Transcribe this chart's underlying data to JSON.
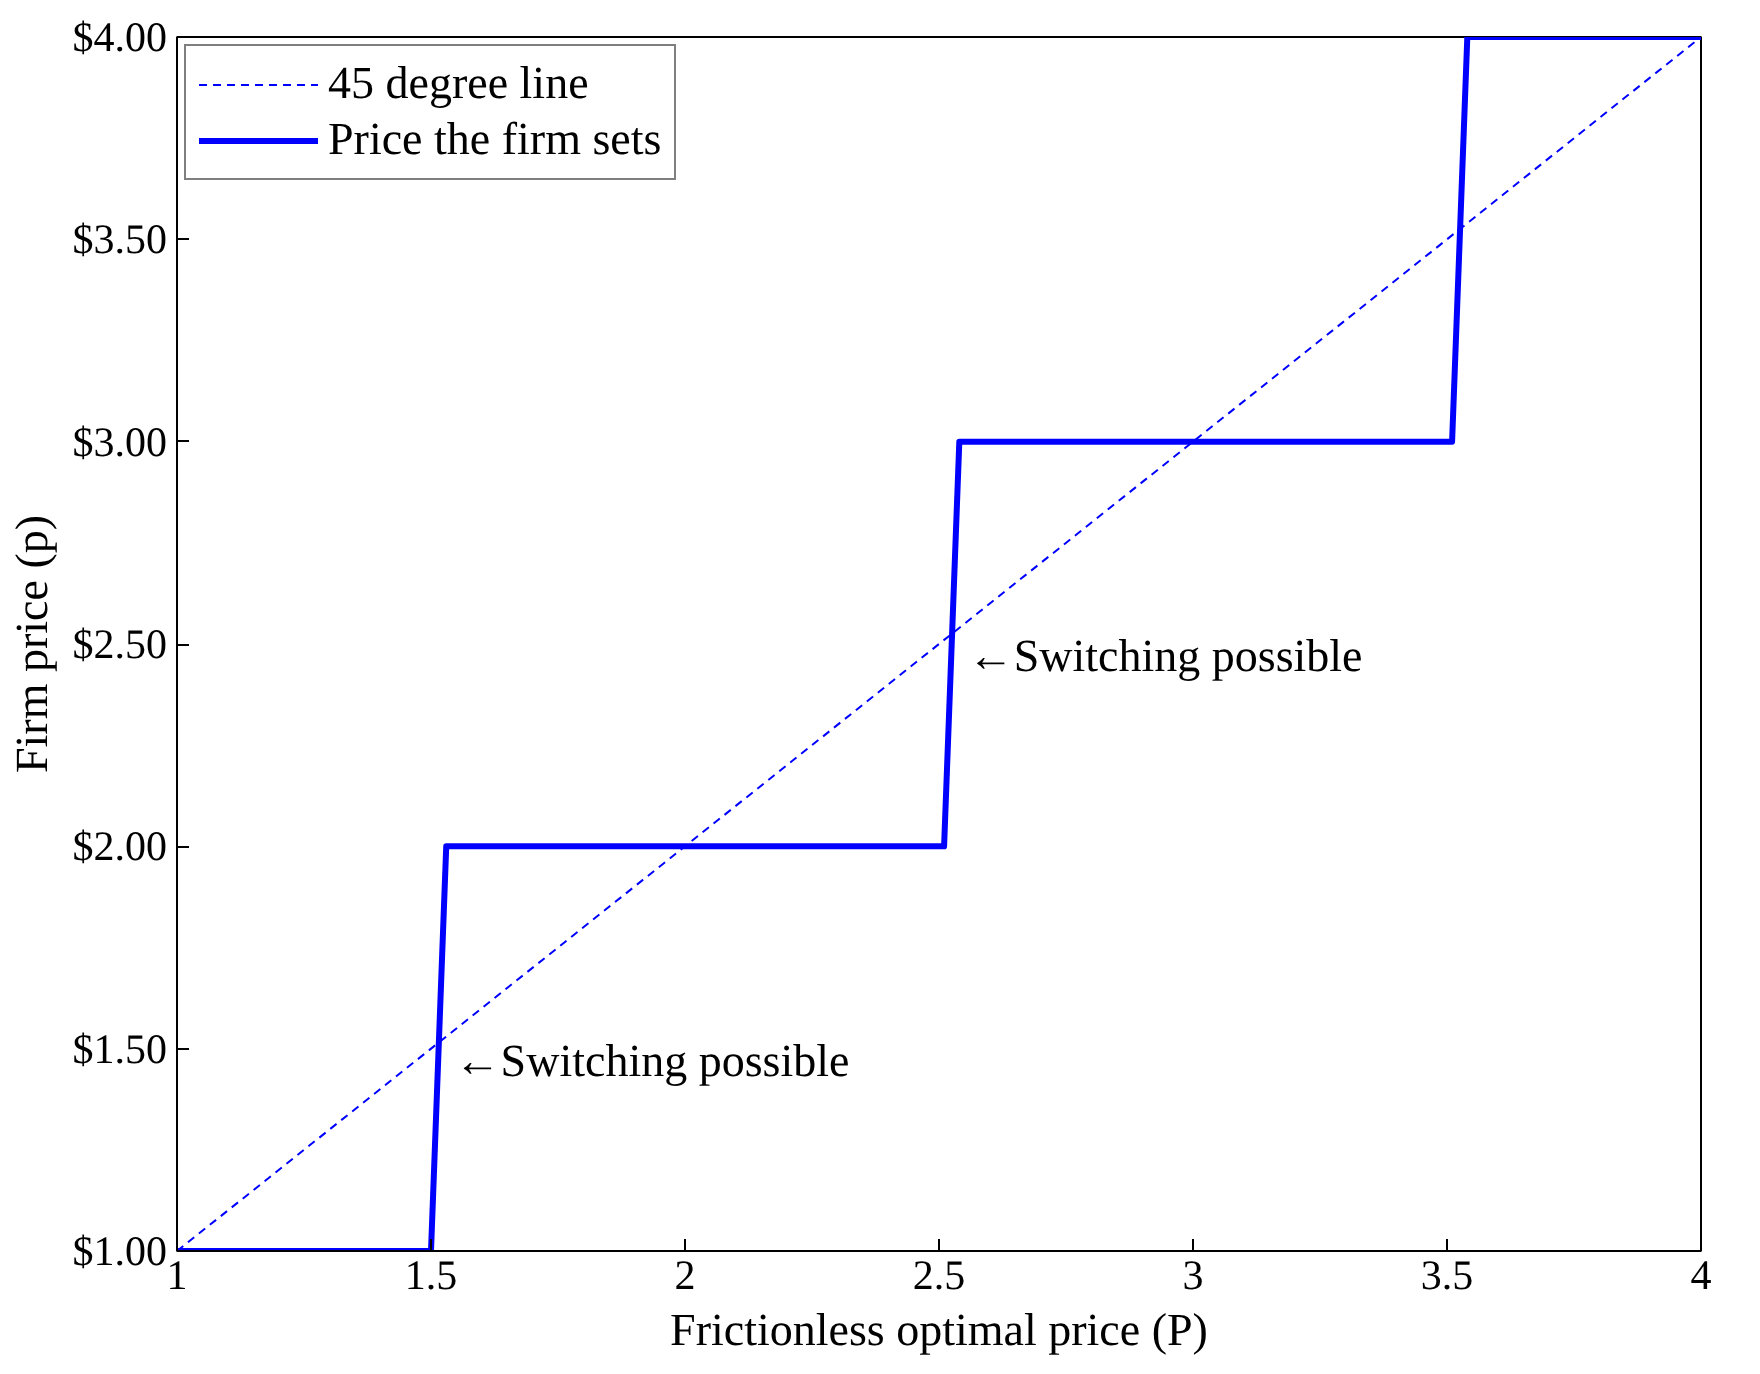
{
  "chart_data": {
    "type": "line",
    "xlabel": "Frictionless optimal price (P)",
    "ylabel": "Firm price (p)",
    "xlim": [
      1,
      4
    ],
    "ylim": [
      1,
      4
    ],
    "xticks": [
      1,
      1.5,
      2,
      2.5,
      3,
      3.5,
      4
    ],
    "yticks": [
      {
        "value": 1,
        "label": "$1.00"
      },
      {
        "value": 1.5,
        "label": "$1.50"
      },
      {
        "value": 2,
        "label": "$2.00"
      },
      {
        "value": 2.5,
        "label": "$2.50"
      },
      {
        "value": 3,
        "label": "$3.00"
      },
      {
        "value": 3.5,
        "label": "$3.50"
      },
      {
        "value": 4,
        "label": "$4.00"
      }
    ],
    "series": [
      {
        "name": "45 degree line",
        "color": "#0000ff",
        "line_style": "dashed",
        "x": [
          1,
          4
        ],
        "values": [
          1,
          4
        ]
      },
      {
        "name": "Price the firm sets",
        "color": "#0000ff",
        "line_style": "solid",
        "x": [
          1,
          1.5,
          1.53,
          2.51,
          2.54,
          3.51,
          3.54,
          4
        ],
        "values": [
          1,
          1,
          2,
          2,
          3,
          3,
          4,
          4
        ]
      }
    ],
    "annotations": [
      {
        "text": "←Switching possible",
        "x": 1.515,
        "y": 1.5
      },
      {
        "text": "←Switching possible",
        "x": 2.525,
        "y": 2.5
      }
    ],
    "legend": "top left",
    "grid": false,
    "marker": "none"
  }
}
